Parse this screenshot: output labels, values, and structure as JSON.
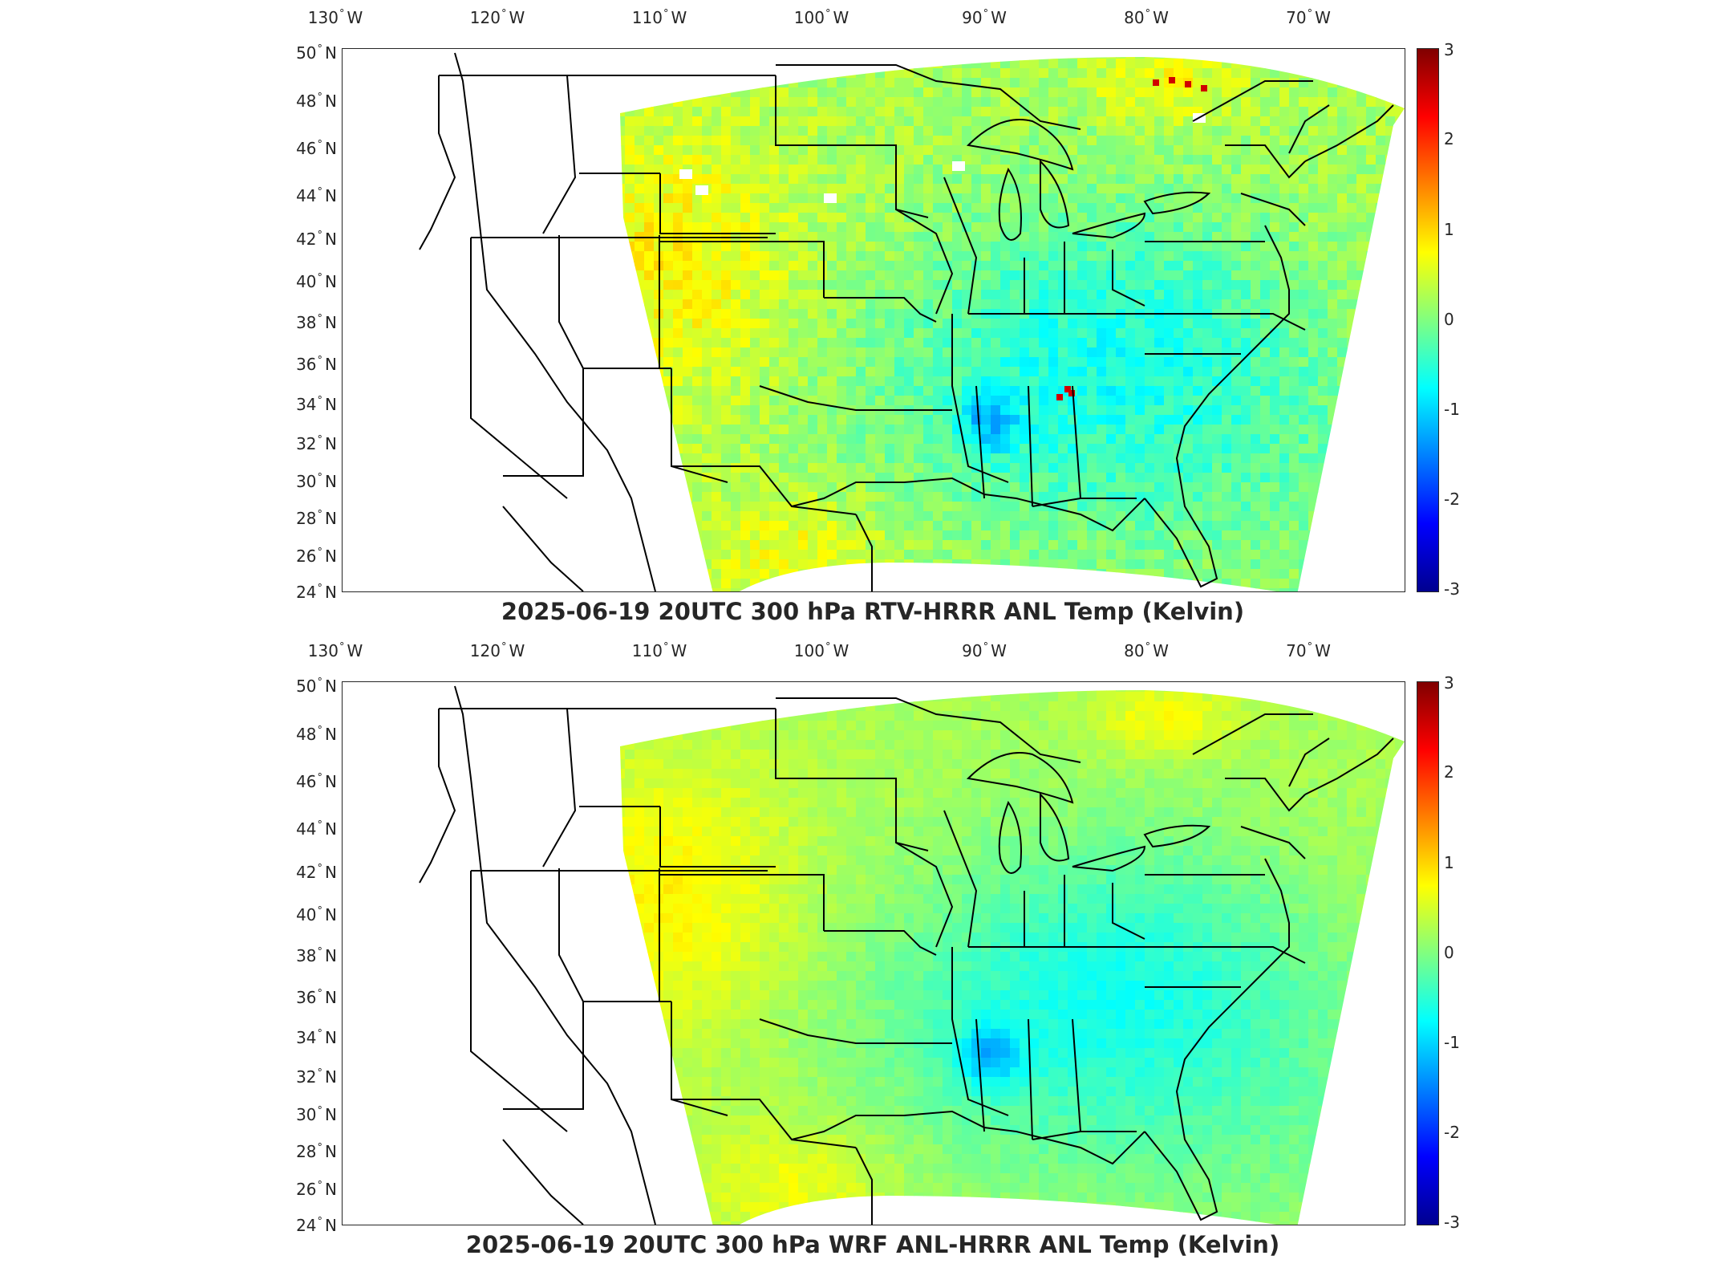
{
  "panels": [
    {
      "title": "2025-06-19 20UTC 300 hPa RTV-HRRR ANL Temp (Kelvin)",
      "field_style": "noisy"
    },
    {
      "title": "2025-06-19 20UTC 300 hPa WRF ANL-HRRR ANL Temp (Kelvin)",
      "field_style": "smooth"
    }
  ],
  "axes": {
    "lon_ticks": [
      "130",
      "120",
      "110",
      "100",
      "90",
      "80",
      "70"
    ],
    "lon_suffix": "W",
    "lat_ticks": [
      "50",
      "48",
      "46",
      "44",
      "42",
      "40",
      "38",
      "36",
      "34",
      "32",
      "30",
      "28",
      "26",
      "24"
    ],
    "lat_suffix": "N",
    "degree_symbol": "°"
  },
  "colorbar": {
    "ticks": [
      "3",
      "2",
      "1",
      "0",
      "-1",
      "-2",
      "-3"
    ],
    "min": -3,
    "max": 3,
    "colormap": "jet"
  }
}
